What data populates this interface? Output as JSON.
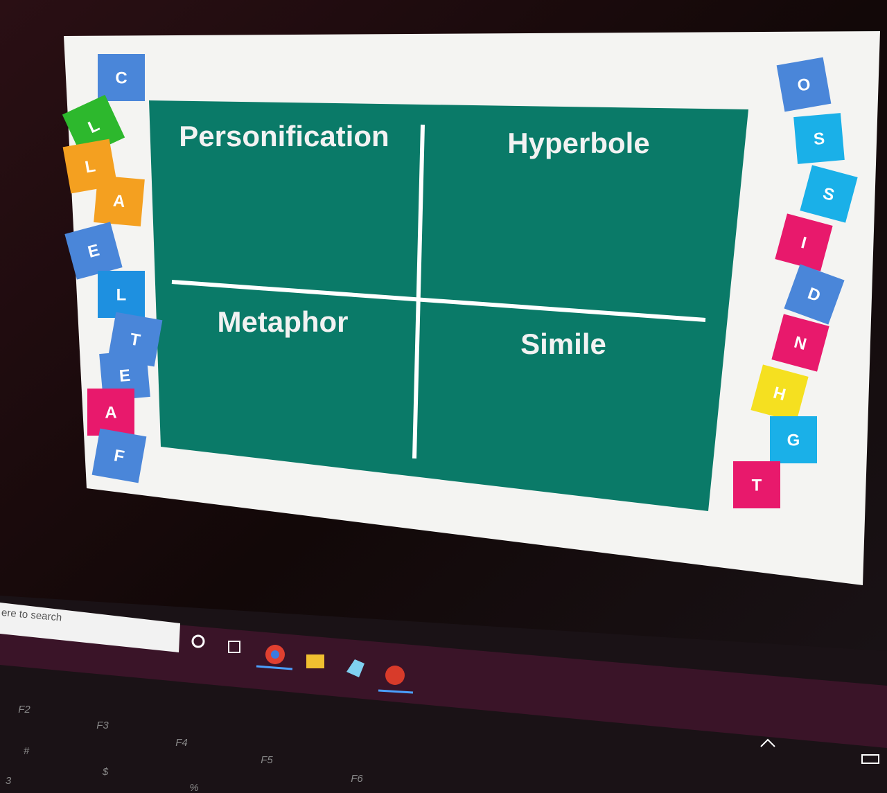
{
  "slide": {
    "quadrants": [
      "Personification",
      "Hyperbole",
      "Metaphor",
      "Simile"
    ],
    "left_tiles": [
      "C",
      "L",
      "L",
      "A",
      "E",
      "L",
      "T",
      "E",
      "A",
      "F"
    ],
    "right_tiles": [
      "O",
      "S",
      "S",
      "I",
      "D",
      "N",
      "H",
      "G",
      "T"
    ]
  },
  "taskbar": {
    "search_placeholder": "ere to search"
  },
  "keyboard": {
    "keys": [
      "F2",
      "F3",
      "F4",
      "F5",
      "F6",
      "#",
      "$",
      "3",
      "%"
    ]
  }
}
